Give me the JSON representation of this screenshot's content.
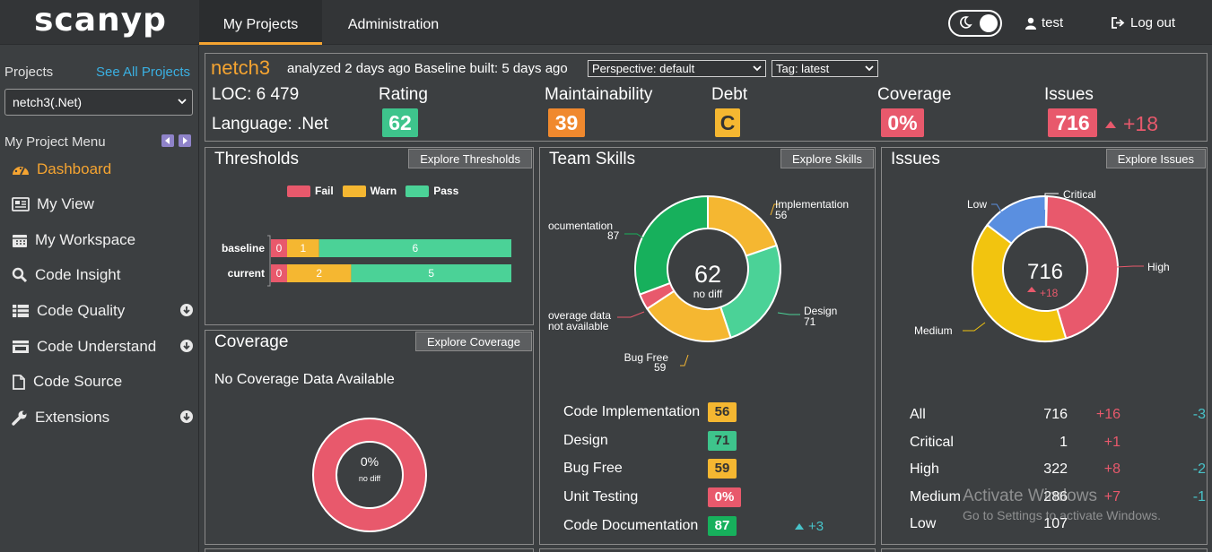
{
  "app": {
    "logo": "scanyp",
    "nav": {
      "my_projects": "My Projects",
      "administration": "Administration"
    },
    "user": "test",
    "logout": "Log out"
  },
  "sidebar": {
    "projects_label": "Projects",
    "see_all": "See All Projects",
    "selected_project": "netch3(.Net)",
    "menu_title": "My Project Menu",
    "items": [
      {
        "label": "Dashboard",
        "icon": "dashboard-icon",
        "active": true
      },
      {
        "label": "My View",
        "icon": "view-icon"
      },
      {
        "label": "My Workspace",
        "icon": "calendar-icon"
      },
      {
        "label": "Code Insight",
        "icon": "search-icon"
      },
      {
        "label": "Code Quality",
        "icon": "list-icon",
        "download": true
      },
      {
        "label": "Code Understand",
        "icon": "folder-icon",
        "download": true
      },
      {
        "label": "Code Source",
        "icon": "file-icon"
      },
      {
        "label": "Extensions",
        "icon": "wrench-icon",
        "download": true
      }
    ]
  },
  "header": {
    "project": "netch3",
    "analyzed": "analyzed 2 days ago Baseline built: 5 days ago",
    "perspective": "Perspective: default",
    "tag": "Tag: latest",
    "loc": "LOC: 6 479",
    "language": "Language: .Net",
    "rating_label": "Rating",
    "rating": "62",
    "maint_label": "Maintainability",
    "maint": "39",
    "debt_label": "Debt",
    "debt": "C",
    "coverage_label": "Coverage",
    "coverage": "0%",
    "issues_label": "Issues",
    "issues": "716",
    "issues_delta": "+18",
    "colors": {
      "green": "#3ec48c",
      "orange": "#f0892e",
      "yellow": "#f5b731",
      "red": "#e8596c"
    }
  },
  "thresholds": {
    "title": "Thresholds",
    "explore": "Explore Thresholds",
    "legend": {
      "fail": "Fail",
      "warn": "Warn",
      "pass": "Pass"
    }
  },
  "coverage_panel": {
    "title": "Coverage",
    "explore": "Explore Coverage",
    "message": "No Coverage Data Available",
    "center": "0%",
    "sub": "no diff"
  },
  "team_skills": {
    "title": "Team Skills",
    "explore": "Explore Skills",
    "center": "62",
    "sub": "no diff",
    "labels": {
      "implementation": "Implementation",
      "implementation_v": "56",
      "design": "Design",
      "design_v": "71",
      "bugfree": "Bug Free",
      "bugfree_v": "59",
      "coverage_l1": "overage data",
      "coverage_l2": "not available",
      "documentation": "ocumentation",
      "documentation_v": "87"
    },
    "rows": [
      {
        "name": "Code Implementation",
        "value": "56",
        "color": "#f5b731",
        "delta": ""
      },
      {
        "name": "Design",
        "value": "71",
        "color": "#3ec48c",
        "delta": ""
      },
      {
        "name": "Bug Free",
        "value": "59",
        "color": "#f5b731",
        "delta": ""
      },
      {
        "name": "Unit Testing",
        "value": "0%",
        "color": "#e8596c",
        "delta": ""
      },
      {
        "name": "Code Documentation",
        "value": "87",
        "color": "#17b05c",
        "delta": "+3"
      }
    ]
  },
  "issues_panel": {
    "title": "Issues",
    "explore": "Explore Issues",
    "center": "716",
    "sub": "+18",
    "labels": {
      "critical": "Critical",
      "low": "Low",
      "high": "High",
      "medium": "Medium"
    },
    "rows": [
      {
        "name": "All",
        "count": "716",
        "up": "+16",
        "down": "-3"
      },
      {
        "name": "Critical",
        "count": "1",
        "up": "+1",
        "down": ""
      },
      {
        "name": "High",
        "count": "322",
        "up": "+8",
        "down": "-2"
      },
      {
        "name": "Medium",
        "count": "286",
        "up": "+7",
        "down": "-1"
      },
      {
        "name": "Low",
        "count": "107",
        "up": "",
        "down": ""
      }
    ]
  },
  "watermark": {
    "line1": "Activate Windows",
    "line2": "Go to Settings to activate Windows."
  },
  "chart_data": [
    {
      "type": "bar",
      "title": "Thresholds",
      "categories": [
        "baseline",
        "current"
      ],
      "stacked": true,
      "orientation": "horizontal",
      "series": [
        {
          "name": "Fail",
          "color": "#e8596c",
          "values": [
            0,
            0
          ]
        },
        {
          "name": "Warn",
          "color": "#f5b731",
          "values": [
            1,
            2
          ]
        },
        {
          "name": "Pass",
          "color": "#4bd297",
          "values": [
            6,
            5
          ]
        }
      ]
    },
    {
      "type": "pie",
      "title": "Team Skills",
      "donut": true,
      "slices": [
        {
          "label": "Implementation",
          "value": 56,
          "color": "#f5b731"
        },
        {
          "label": "Design",
          "value": 71,
          "color": "#4bd297"
        },
        {
          "label": "Bug Free",
          "value": 59,
          "color": "#f5b731"
        },
        {
          "label": "Coverage data not available",
          "value": 10,
          "color": "#e8596c"
        },
        {
          "label": "Documentation",
          "value": 87,
          "color": "#17b05c"
        }
      ]
    },
    {
      "type": "pie",
      "title": "Issues",
      "donut": true,
      "slices": [
        {
          "label": "Critical",
          "value": 1,
          "color": "#222222"
        },
        {
          "label": "High",
          "value": 322,
          "color": "#e8596c"
        },
        {
          "label": "Medium",
          "value": 286,
          "color": "#f2c40f"
        },
        {
          "label": "Low",
          "value": 107,
          "color": "#5a8fe0"
        }
      ]
    },
    {
      "type": "pie",
      "title": "Coverage",
      "donut": true,
      "slices": [
        {
          "label": "No coverage",
          "value": 100,
          "color": "#e8596c"
        }
      ]
    }
  ]
}
